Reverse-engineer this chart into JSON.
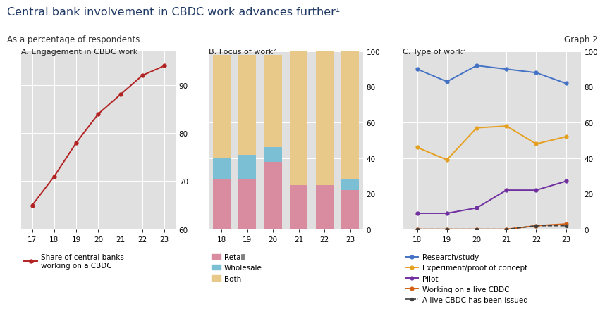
{
  "title": "Central bank involvement in CBDC work advances further¹",
  "subtitle": "As a percentage of respondents",
  "graph_label": "Graph 2",
  "panel_a": {
    "title": "A. Engagement in CBDC work",
    "years": [
      17,
      18,
      19,
      20,
      21,
      22,
      23
    ],
    "values": [
      65,
      71,
      78,
      84,
      88,
      92,
      94
    ],
    "ylim": [
      60,
      97
    ],
    "yticks": [
      60,
      70,
      80,
      90
    ],
    "color": "#b22222",
    "legend_label": "Share of central banks\nworking on a CBDC"
  },
  "panel_b": {
    "title": "B. Focus of work²",
    "years": [
      18,
      19,
      20,
      21,
      22,
      23
    ],
    "retail": [
      28,
      28,
      38,
      25,
      25,
      22
    ],
    "wholesale": [
      12,
      14,
      8,
      0,
      0,
      6
    ],
    "both": [
      58,
      56,
      52,
      75,
      75,
      72
    ],
    "ylim": [
      0,
      100
    ],
    "yticks": [
      0,
      20,
      40,
      60,
      80,
      100
    ],
    "colors": {
      "retail": "#d98ba0",
      "wholesale": "#7bbfd4",
      "both": "#e8c98a"
    }
  },
  "panel_c": {
    "title": "C. Type of work²",
    "years": [
      18,
      19,
      20,
      21,
      22,
      23
    ],
    "research": [
      90,
      83,
      92,
      90,
      88,
      82
    ],
    "experiment": [
      46,
      39,
      57,
      58,
      48,
      52
    ],
    "pilot": [
      9,
      9,
      12,
      22,
      22,
      27
    ],
    "live_cbdc": [
      0,
      0,
      0,
      0,
      2,
      3
    ],
    "issued": [
      0,
      0,
      0,
      0,
      2,
      2
    ],
    "ylim": [
      0,
      100
    ],
    "yticks": [
      0,
      20,
      40,
      60,
      80,
      100
    ],
    "colors": {
      "research": "#4472c4",
      "experiment": "#e5a020",
      "pilot": "#7030a0",
      "live_cbdc": "#d46015",
      "issued": "#404040"
    }
  },
  "bg_color": "#e0e0e0",
  "fig_bg": "#ffffff",
  "title_color": "#1f3864",
  "subtitle_color": "#333333",
  "panel_title_color": "#1a1a1a"
}
